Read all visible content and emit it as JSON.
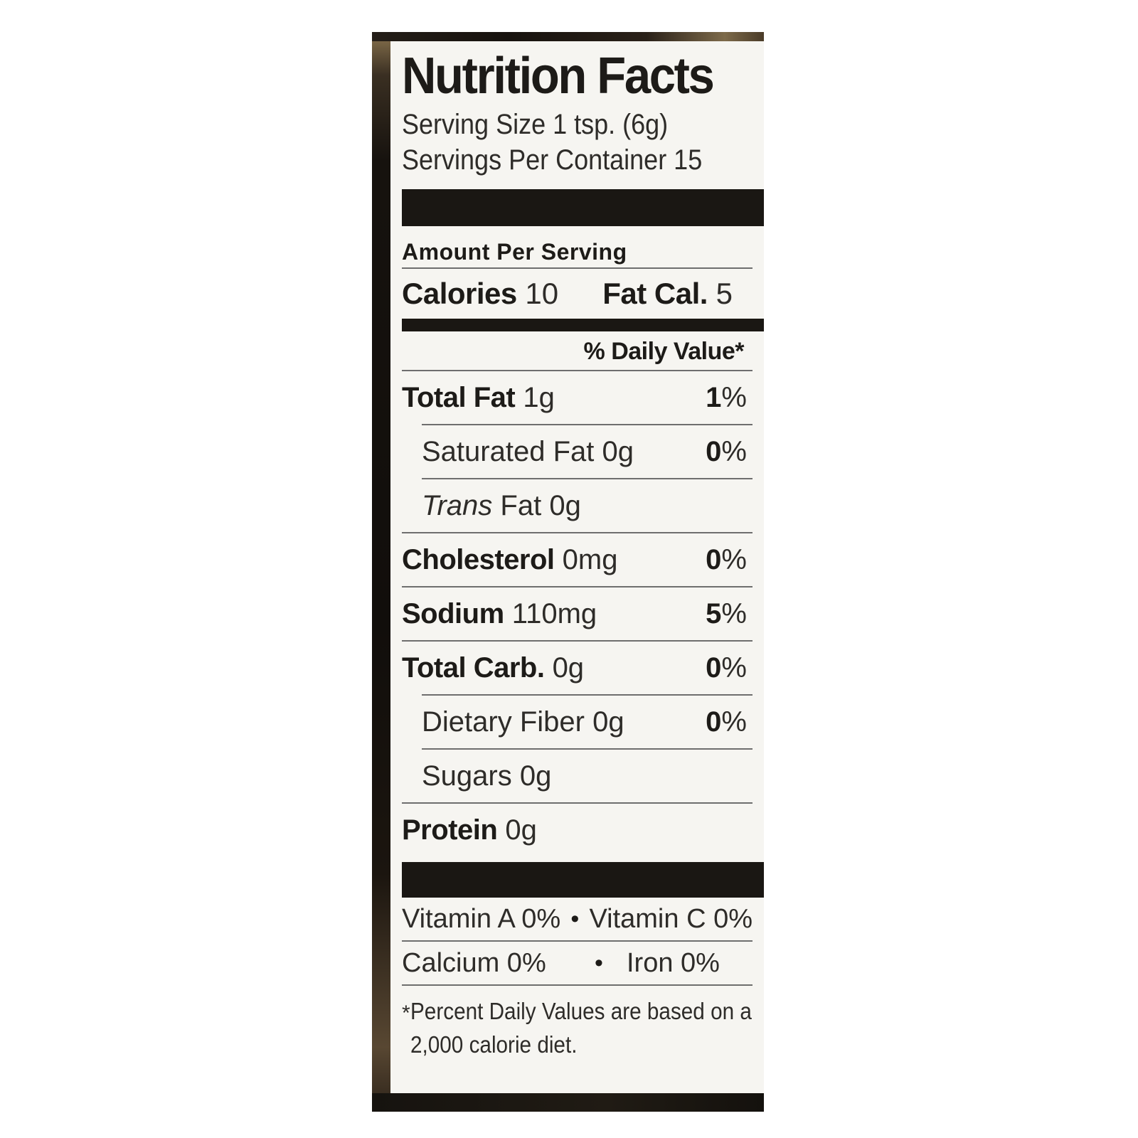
{
  "label": {
    "title": "Nutrition Facts",
    "serving_size": "Serving Size 1 tsp. (6g)",
    "servings_per_container": "Servings Per Container 15",
    "amount_per_serving": "Amount Per Serving",
    "calories": {
      "label": "Calories",
      "value": "10",
      "fat_cal_label": "Fat Cal.",
      "fat_cal_value": "5"
    },
    "daily_value_header": "% Daily Value*",
    "rows": [
      {
        "name": "Total Fat",
        "amount": "1g",
        "dv": "1",
        "bold": true,
        "indent": false
      },
      {
        "name": "Saturated Fat",
        "amount": "0g",
        "dv": "0",
        "bold": false,
        "indent": true
      },
      {
        "name_italic": "Trans",
        "name": "Fat",
        "amount": "0g",
        "bold": false,
        "indent": true
      },
      {
        "name": "Cholesterol",
        "amount": "0mg",
        "dv": "0",
        "bold": true,
        "indent": false
      },
      {
        "name": "Sodium",
        "amount": "110mg",
        "dv": "5",
        "bold": true,
        "indent": false
      },
      {
        "name": "Total Carb.",
        "amount": "0g",
        "dv": "0",
        "bold": true,
        "indent": false
      },
      {
        "name": "Dietary Fiber",
        "amount": "0g",
        "dv": "0",
        "bold": false,
        "indent": true
      },
      {
        "name": "Sugars",
        "amount": "0g",
        "bold": false,
        "indent": true
      },
      {
        "name": "Protein",
        "amount": "0g",
        "bold": true,
        "indent": false
      }
    ],
    "micronutrients": [
      {
        "left": "Vitamin A 0%",
        "right": "Vitamin C 0%"
      },
      {
        "left": "Calcium 0%",
        "right": "Iron 0%"
      }
    ],
    "footnote_marker": "*",
    "footnote_line1": "Percent Daily Values are based on a",
    "footnote_line2": "2,000 calorie diet.",
    "percent_sign": "%",
    "bullet": "•"
  },
  "colors": {
    "page_bg": "#ffffff",
    "panel_bg": "#f6f5f1",
    "ink": "#1d1b18",
    "text": "#2e2c29",
    "hair": "#6e6e6e",
    "bar": "#1a1713"
  }
}
